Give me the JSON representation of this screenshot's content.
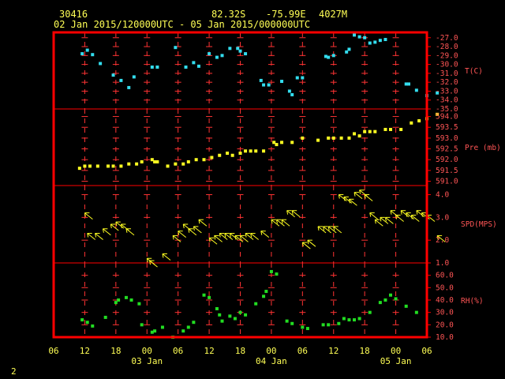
{
  "header": {
    "station": "30416",
    "lat": "82.32S",
    "lon": "-75.99E",
    "elev": "4027M",
    "period": "02 Jan 2015/120000UTC - 05 Jan 2015/000000UTC"
  },
  "page_number": "2",
  "colors": {
    "frame": "#ff0000",
    "grid": "#ff3333",
    "axis_text": "#ff5555",
    "header_text": "#ffff55",
    "temp": "#33ddee",
    "pres": "#ffff22",
    "wind": "#ffff22",
    "rh": "#22dd22"
  },
  "chart_data": [
    {
      "type": "scatter",
      "variable": "T(C)",
      "ylim": [
        -35.0,
        -26.4
      ],
      "yticks": [
        "-27.0",
        "-28.0",
        "-29.0",
        "-30.0",
        "-31.0",
        "-32.0",
        "-33.0",
        "-34.0",
        "-35.0"
      ],
      "points": [
        [
          11.5,
          -28.8
        ],
        [
          12.5,
          -28.4
        ],
        [
          13.5,
          -28.9
        ],
        [
          15,
          -29.9
        ],
        [
          17.5,
          -31.2
        ],
        [
          19,
          -31.8
        ],
        [
          20.5,
          -32.6
        ],
        [
          21.5,
          -31.4
        ],
        [
          25,
          -30.3
        ],
        [
          26,
          -30.3
        ],
        [
          29.5,
          -28.1
        ],
        [
          31.5,
          -30.3
        ],
        [
          33,
          -29.8
        ],
        [
          34,
          -30.2
        ],
        [
          36,
          -28.8
        ],
        [
          37.5,
          -29.2
        ],
        [
          38.5,
          -29.0
        ],
        [
          40,
          -28.2
        ],
        [
          41.5,
          -28.2
        ],
        [
          42,
          -28.5
        ],
        [
          43,
          -28.8
        ],
        [
          46,
          -31.8
        ],
        [
          46.5,
          -32.3
        ],
        [
          47.5,
          -32.3
        ],
        [
          50,
          -31.9
        ],
        [
          51.5,
          -33.0
        ],
        [
          52,
          -33.4
        ],
        [
          53,
          -31.5
        ],
        [
          54,
          -31.5
        ],
        [
          58.5,
          -29.1
        ],
        [
          59,
          -29.2
        ],
        [
          60,
          -29.0
        ],
        [
          62.5,
          -28.6
        ],
        [
          63,
          -28.3
        ],
        [
          64,
          -26.7
        ],
        [
          65,
          -26.9
        ],
        [
          66,
          -27.0
        ],
        [
          67,
          -27.6
        ],
        [
          68,
          -27.5
        ],
        [
          69,
          -27.3
        ],
        [
          70,
          -27.2
        ],
        [
          74,
          -32.2
        ],
        [
          74.5,
          -32.2
        ],
        [
          76,
          -32.9
        ],
        [
          78,
          -33.5
        ],
        [
          80,
          -33.2
        ]
      ]
    },
    {
      "type": "scatter",
      "variable": "Pre (mb)",
      "ylim": [
        590.8,
        594.35
      ],
      "yticks": [
        "594.0",
        "593.5",
        "593.0",
        "592.5",
        "592.0",
        "591.5",
        "591.0"
      ],
      "points": [
        [
          11,
          591.6
        ],
        [
          12,
          591.7
        ],
        [
          13,
          591.7
        ],
        [
          14.5,
          591.7
        ],
        [
          16.5,
          591.7
        ],
        [
          17.5,
          591.7
        ],
        [
          19,
          591.7
        ],
        [
          20.5,
          591.8
        ],
        [
          22,
          591.8
        ],
        [
          23,
          591.9
        ],
        [
          25,
          592.0
        ],
        [
          25.5,
          591.9
        ],
        [
          26,
          591.9
        ],
        [
          28,
          591.7
        ],
        [
          29.5,
          591.8
        ],
        [
          31,
          591.8
        ],
        [
          32,
          591.9
        ],
        [
          33.5,
          592.0
        ],
        [
          35,
          592.0
        ],
        [
          36.5,
          592.1
        ],
        [
          38,
          592.2
        ],
        [
          39.5,
          592.3
        ],
        [
          40.5,
          592.2
        ],
        [
          42,
          592.3
        ],
        [
          43,
          592.4
        ],
        [
          44,
          592.4
        ],
        [
          45,
          592.4
        ],
        [
          46.5,
          592.4
        ],
        [
          48.5,
          592.8
        ],
        [
          49,
          592.7
        ],
        [
          50,
          592.8
        ],
        [
          52,
          592.8
        ],
        [
          54,
          593.0
        ],
        [
          57,
          592.9
        ],
        [
          59,
          593.0
        ],
        [
          60,
          593.0
        ],
        [
          61.5,
          593.0
        ],
        [
          63,
          593.0
        ],
        [
          64,
          593.2
        ],
        [
          65,
          593.1
        ],
        [
          66,
          593.3
        ],
        [
          67,
          593.3
        ],
        [
          68,
          593.3
        ],
        [
          70,
          593.4
        ],
        [
          71,
          593.4
        ],
        [
          73,
          593.4
        ],
        [
          75,
          593.7
        ],
        [
          76.5,
          593.8
        ],
        [
          78,
          593.9
        ],
        [
          80,
          594.1
        ]
      ]
    },
    {
      "type": "wind",
      "variable": "SPD(MPS)",
      "ylim": [
        1.0,
        4.4
      ],
      "yticks": [
        "4.0",
        "3.0",
        "2.0",
        "1.0"
      ],
      "points": [
        [
          12,
          3.2
        ],
        [
          12.5,
          2.3
        ],
        [
          14,
          2.3
        ],
        [
          15.5,
          2.5
        ],
        [
          17,
          2.7
        ],
        [
          18,
          2.8
        ],
        [
          19,
          2.7
        ],
        [
          20,
          2.5
        ],
        [
          24,
          1.2
        ],
        [
          24.5,
          1.1
        ],
        [
          27,
          1.4
        ],
        [
          29,
          2.2
        ],
        [
          30,
          2.4
        ],
        [
          31,
          2.7
        ],
        [
          32,
          2.5
        ],
        [
          33,
          2.6
        ],
        [
          34,
          2.9
        ],
        [
          36,
          2.1
        ],
        [
          37,
          2.2
        ],
        [
          38,
          2.3
        ],
        [
          39,
          2.3
        ],
        [
          40,
          2.3
        ],
        [
          41,
          2.2
        ],
        [
          42,
          2.2
        ],
        [
          43,
          2.3
        ],
        [
          44,
          2.3
        ],
        [
          46,
          2.4
        ],
        [
          48,
          2.9
        ],
        [
          49,
          2.9
        ],
        [
          50,
          2.9
        ],
        [
          51,
          3.3
        ],
        [
          52,
          3.3
        ],
        [
          54,
          1.9
        ],
        [
          55,
          2.0
        ],
        [
          57,
          2.6
        ],
        [
          58,
          2.6
        ],
        [
          59,
          2.6
        ],
        [
          60,
          2.6
        ],
        [
          61,
          4.0
        ],
        [
          62,
          3.9
        ],
        [
          63,
          3.8
        ],
        [
          64,
          4.1
        ],
        [
          65,
          4.2
        ],
        [
          66,
          4.0
        ],
        [
          67,
          3.2
        ],
        [
          68,
          2.9
        ],
        [
          69,
          3.0
        ],
        [
          70,
          3.0
        ],
        [
          71,
          3.3
        ],
        [
          72,
          3.1
        ],
        [
          73,
          3.3
        ],
        [
          74,
          3.2
        ],
        [
          75,
          3.1
        ],
        [
          76,
          3.3
        ],
        [
          77,
          3.2
        ],
        [
          78,
          3.1
        ],
        [
          80,
          2.2
        ]
      ]
    },
    {
      "type": "scatter",
      "variable": "RH(%)",
      "ylim": [
        10.0,
        70.0
      ],
      "yticks": [
        "60.0",
        "50.0",
        "40.0",
        "30.0",
        "20.0",
        "10.0"
      ],
      "points": [
        [
          11.5,
          24
        ],
        [
          12.5,
          22
        ],
        [
          13.5,
          19
        ],
        [
          16,
          26
        ],
        [
          18,
          38
        ],
        [
          18.5,
          40
        ],
        [
          20,
          42
        ],
        [
          21,
          40
        ],
        [
          22.5,
          37
        ],
        [
          23,
          20
        ],
        [
          25,
          14
        ],
        [
          25.5,
          15
        ],
        [
          27,
          18
        ],
        [
          29,
          10
        ],
        [
          31,
          15
        ],
        [
          32,
          18
        ],
        [
          33,
          22
        ],
        [
          35,
          44
        ],
        [
          36,
          42
        ],
        [
          37.5,
          33
        ],
        [
          38,
          28
        ],
        [
          38.5,
          23
        ],
        [
          40,
          27
        ],
        [
          41,
          25
        ],
        [
          42,
          30
        ],
        [
          43,
          28
        ],
        [
          45,
          37
        ],
        [
          46.5,
          43
        ],
        [
          47,
          47
        ],
        [
          48,
          63
        ],
        [
          49,
          61
        ],
        [
          51,
          23
        ],
        [
          52,
          21
        ],
        [
          54,
          18
        ],
        [
          55,
          17
        ],
        [
          58,
          20
        ],
        [
          59,
          20
        ],
        [
          61,
          21
        ],
        [
          62,
          25
        ],
        [
          63,
          24
        ],
        [
          64,
          24
        ],
        [
          65,
          25
        ],
        [
          67,
          30
        ],
        [
          69,
          38
        ],
        [
          70,
          40
        ],
        [
          71,
          44
        ],
        [
          72,
          41
        ],
        [
          74,
          35
        ],
        [
          76,
          30
        ]
      ]
    }
  ],
  "x_axis": {
    "range_hours": [
      6,
      78
    ],
    "tick_labels": [
      {
        "h": 6,
        "t": "06"
      },
      {
        "h": 12,
        "t": "12"
      },
      {
        "h": 18,
        "t": "18"
      },
      {
        "h": 24,
        "t": "00"
      },
      {
        "h": 30,
        "t": "06"
      },
      {
        "h": 36,
        "t": "12"
      },
      {
        "h": 42,
        "t": "18"
      },
      {
        "h": 48,
        "t": "00"
      },
      {
        "h": 54,
        "t": "06"
      },
      {
        "h": 60,
        "t": "12"
      },
      {
        "h": 66,
        "t": "18"
      },
      {
        "h": 72,
        "t": "00"
      },
      {
        "h": 78,
        "t": "06"
      }
    ],
    "date_labels": [
      {
        "h": 24,
        "t": "03 Jan"
      },
      {
        "h": 48,
        "t": "04 Jan"
      },
      {
        "h": 72,
        "t": "05 Jan"
      }
    ]
  }
}
